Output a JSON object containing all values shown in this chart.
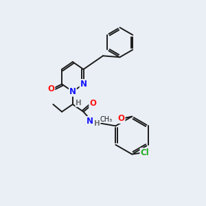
{
  "bg_color": "#eaeff5",
  "bond_color": "#1a1a1a",
  "atom_colors": {
    "N": "#1414ff",
    "O": "#ff1414",
    "Cl": "#22aa22",
    "H": "#707070"
  },
  "font_size": 8.5,
  "lw": 1.4
}
